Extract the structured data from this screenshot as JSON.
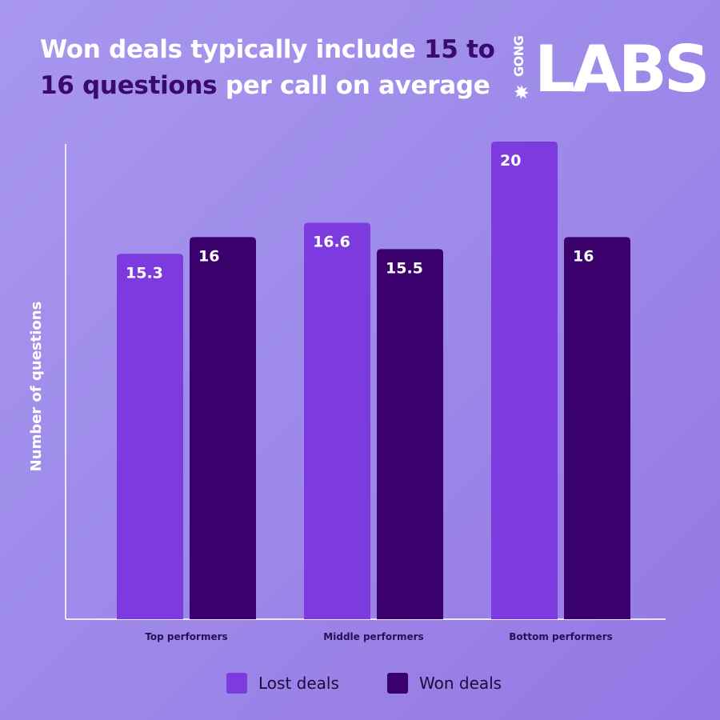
{
  "header": {
    "title_part1": "Won deals typically include ",
    "title_highlight1": "15 to",
    "title_highlight2": "16 questions",
    "title_part2": " per call on average"
  },
  "logo": {
    "small": "GONG",
    "big_start": "L",
    "big_a": "A",
    "big_end": "BS"
  },
  "colors": {
    "lost": "#7c3adf",
    "won": "#3a006c",
    "axis": "#ece6ff",
    "highlight": "#3a0a6e"
  },
  "chart_data": {
    "type": "bar",
    "categories": [
      "Top performers",
      "Middle performers",
      "Bottom performers"
    ],
    "series": [
      {
        "name": "Lost deals",
        "values": [
          15.3,
          16.6,
          20
        ]
      },
      {
        "name": "Won deals",
        "values": [
          16,
          15.5,
          16
        ]
      }
    ],
    "title": "Won deals typically include 15 to 16 questions per call on average",
    "xlabel": "",
    "ylabel": "Number of questions",
    "ylim": [
      0,
      20
    ],
    "grid": false,
    "legend": "bottom-center"
  }
}
